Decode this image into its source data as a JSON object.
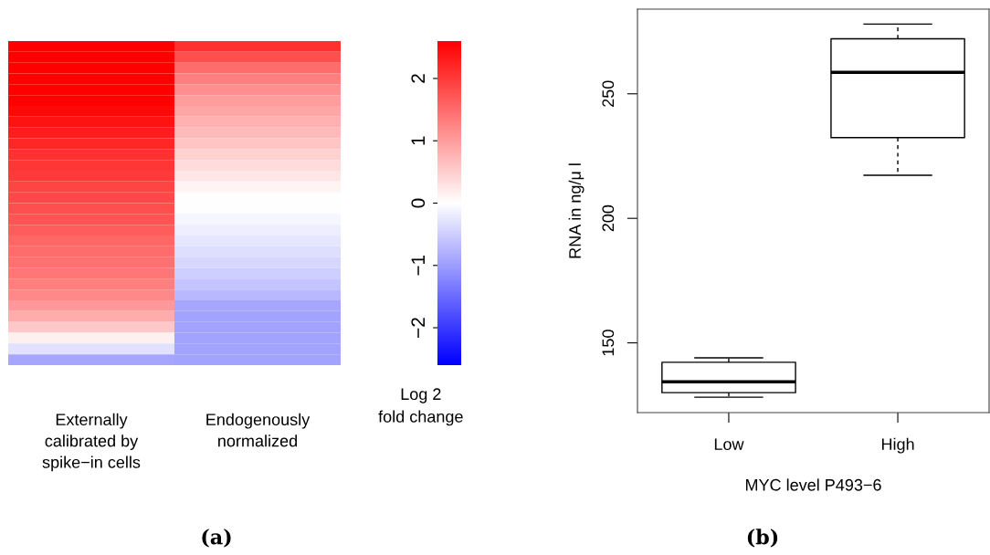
{
  "chart_data": [
    {
      "type": "heatmap",
      "categories": [
        "Externally\ncalibrated by\nspike−in cells",
        "Endogenously\nnormalized"
      ],
      "y_categories": [
        null,
        null,
        null,
        null,
        null,
        null,
        null,
        null,
        null,
        null,
        null,
        null,
        null,
        null,
        null,
        null,
        null,
        null,
        null,
        null,
        null,
        null,
        null,
        null,
        null,
        null,
        null,
        null,
        null,
        null
      ],
      "cells": [
        [
          2.6,
          2.1
        ],
        [
          2.6,
          1.8
        ],
        [
          2.6,
          1.5
        ],
        [
          2.6,
          1.3
        ],
        [
          2.6,
          1.15
        ],
        [
          2.6,
          1.0
        ],
        [
          2.5,
          0.9
        ],
        [
          2.4,
          0.8
        ],
        [
          2.3,
          0.7
        ],
        [
          2.2,
          0.6
        ],
        [
          2.1,
          0.45
        ],
        [
          2.05,
          0.35
        ],
        [
          2.0,
          0.25
        ],
        [
          1.9,
          0.12
        ],
        [
          1.85,
          0.02
        ],
        [
          1.8,
          -0.02
        ],
        [
          1.74,
          -0.1
        ],
        [
          1.65,
          -0.18
        ],
        [
          1.55,
          -0.25
        ],
        [
          1.5,
          -0.33
        ],
        [
          1.45,
          -0.42
        ],
        [
          1.4,
          -0.5
        ],
        [
          1.3,
          -0.6
        ],
        [
          1.2,
          -0.72
        ],
        [
          1.05,
          -0.9
        ],
        [
          0.85,
          -0.95
        ],
        [
          0.55,
          -0.95
        ],
        [
          0.15,
          -0.95
        ],
        [
          -0.3,
          -0.95
        ],
        [
          -0.9,
          -0.95
        ]
      ],
      "clim": [
        -2.6,
        2.6
      ],
      "cticks": [
        {
          "value": -2,
          "label": "−2"
        },
        {
          "value": -1,
          "label": "−1"
        },
        0,
        1,
        2
      ],
      "clabel": "Log 2\nfold change",
      "annotations": [
        "(a)"
      ]
    },
    {
      "type": "box",
      "categories": [
        "Low",
        "High"
      ],
      "boxes": [
        {
          "low": 128.2,
          "q1": 130.0,
          "median": 134.4,
          "q3": 142.2,
          "high": 144.0
        },
        {
          "low": 217.3,
          "q1": 232.4,
          "median": 258.6,
          "q3": 272.1,
          "high": 278.0
        }
      ],
      "ylim": [
        122,
        284
      ],
      "yticks": [
        150,
        200,
        250
      ],
      "xlabel": "MYC level P493−6",
      "ylabel": "RNA in ng/μ l",
      "grid": false,
      "annotations": [
        "(b)"
      ]
    }
  ]
}
